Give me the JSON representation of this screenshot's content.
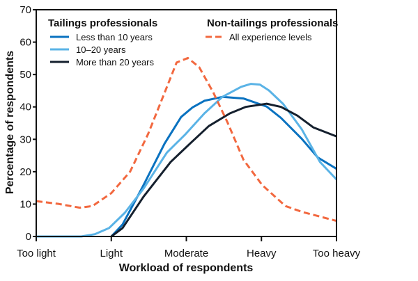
{
  "chart_data": {
    "type": "line",
    "title": "",
    "xlabel": "Workload of respondents",
    "ylabel": "Percentage of respondents",
    "x_categories": [
      "Too light",
      "Light",
      "Moderate",
      "Heavy",
      "Too heavy"
    ],
    "xlim": [
      0,
      4
    ],
    "ylim": [
      0,
      70
    ],
    "yticks": [
      0,
      10,
      20,
      30,
      40,
      50,
      60,
      70
    ],
    "grid": false,
    "legend_groups": [
      {
        "title": "Tailings professionals",
        "placement": "top-left"
      },
      {
        "title": "Non-tailings professionals",
        "placement": "top-right"
      }
    ],
    "series": [
      {
        "name": "Less than 10 years",
        "group": 0,
        "color": "#0a72c0",
        "dashed": false,
        "x": [
          1.0,
          1.15,
          1.43,
          1.71,
          1.93,
          2.08,
          2.24,
          2.48,
          2.76,
          3.07,
          3.26,
          3.54,
          3.75,
          4.0
        ],
        "y": [
          0,
          3.7,
          15.9,
          28.7,
          36.9,
          39.8,
          41.9,
          43.1,
          42.6,
          40.1,
          36.6,
          30.1,
          24.4,
          20.9
        ]
      },
      {
        "name": "10–20 years",
        "group": 0,
        "color": "#5ab3e6",
        "dashed": false,
        "x": [
          0,
          0.6,
          0.78,
          0.97,
          1.18,
          1.43,
          1.74,
          1.99,
          2.24,
          2.48,
          2.73,
          2.86,
          2.98,
          3.1,
          3.29,
          3.54,
          3.78,
          4.0
        ],
        "y": [
          0,
          0,
          0.7,
          2.6,
          7.3,
          14.8,
          25.9,
          31.6,
          38,
          43.1,
          46.2,
          47.1,
          46.9,
          45.1,
          40.9,
          33,
          23,
          17.6
        ]
      },
      {
        "name": "More than 20 years",
        "group": 0,
        "color": "#15202e",
        "dashed": false,
        "x": [
          1.0,
          1.15,
          1.43,
          1.79,
          2.05,
          2.3,
          2.58,
          2.79,
          3.07,
          3.26,
          3.48,
          3.69,
          4.0
        ],
        "y": [
          0,
          2.6,
          12.3,
          23,
          28.7,
          34.1,
          38,
          40,
          41,
          40,
          37.3,
          33.7,
          30.9
        ]
      },
      {
        "name": "All experience levels",
        "group": 1,
        "color": "#f2683f",
        "dashed": true,
        "x": [
          0,
          0.29,
          0.58,
          0.75,
          1.0,
          1.25,
          1.49,
          1.71,
          1.87,
          2.02,
          2.17,
          2.36,
          2.55,
          2.76,
          3.01,
          3.32,
          3.54,
          4.0
        ],
        "y": [
          10.9,
          10.1,
          8.9,
          9.4,
          13.4,
          20,
          31.6,
          44.4,
          53.7,
          55.1,
          52.3,
          44.4,
          35.1,
          23.7,
          15.9,
          9.4,
          7.6,
          4.8
        ]
      }
    ]
  }
}
